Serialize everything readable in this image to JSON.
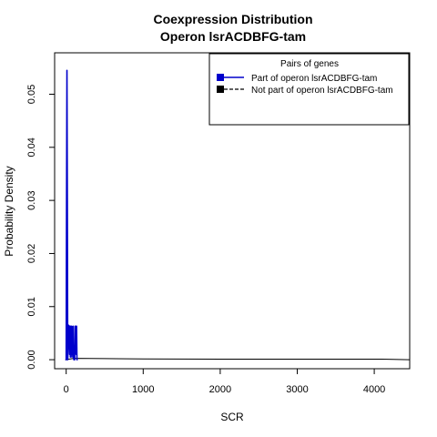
{
  "chart_data": {
    "type": "line",
    "title_line1": "Coexpression Distribution",
    "title_line2": "Operon lsrACDBFG-tam",
    "xlabel": "SCR",
    "ylabel": "Probability Density",
    "xlim": [
      -150,
      4460
    ],
    "ylim": [
      -0.0017,
      0.0578
    ],
    "x_ticks": [
      0,
      1000,
      2000,
      3000,
      4000
    ],
    "x_tick_labels": [
      "0",
      "1000",
      "2000",
      "3000",
      "4000"
    ],
    "y_ticks": [
      0.0,
      0.01,
      0.02,
      0.03,
      0.04,
      0.05
    ],
    "y_tick_labels": [
      "0.00",
      "0.01",
      "0.02",
      "0.03",
      "0.04",
      "0.05"
    ],
    "legend": {
      "title": "Pairs of genes",
      "position": "top-right",
      "entries": [
        {
          "label": "Part of operon lsrACDBFG-tam",
          "color": "#0000cc",
          "line_style": "solid"
        },
        {
          "label": "Not part of operon lsrACDBFG-tam",
          "color": "#000000",
          "line_style": "dashed"
        }
      ]
    },
    "series": [
      {
        "name": "Part of operon lsrACDBFG-tam",
        "color": "#0000cc",
        "x": [
          -10,
          0,
          5,
          10,
          15,
          20,
          25,
          30,
          40,
          45,
          50,
          55,
          60,
          65,
          70,
          75,
          80,
          85,
          90,
          95,
          100,
          110,
          115,
          120,
          125,
          130,
          135,
          140,
          150
        ],
        "y": [
          0,
          0,
          0.03,
          0.0545,
          0.03,
          0,
          0.002,
          0.0065,
          0.0063,
          0.001,
          0.0063,
          0.0005,
          0.0063,
          0.001,
          0.0063,
          0.0005,
          0.0062,
          0.001,
          0.0063,
          0.0005,
          0,
          0,
          0.0063,
          0.003,
          0.0063,
          0.001,
          0.0063,
          0,
          0
        ]
      },
      {
        "name": "Not part of operon lsrACDBFG-tam",
        "color": "#000000",
        "x": [
          -10,
          100,
          500,
          1000,
          2000,
          3000,
          3800,
          4100,
          4250,
          4460
        ],
        "y": [
          0,
          0.00025,
          0.0002,
          0.00015,
          0.0001,
          0.0001,
          0.0001,
          0.0001,
          5e-05,
          0
        ]
      }
    ]
  }
}
